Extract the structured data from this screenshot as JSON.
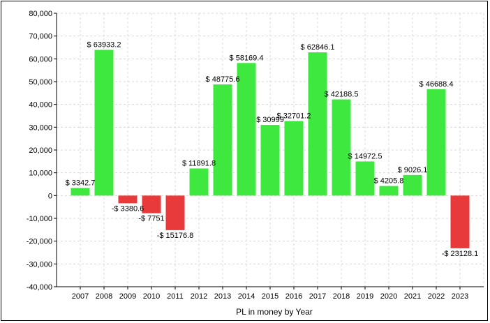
{
  "chart_data": {
    "type": "bar",
    "title": "",
    "xlabel": "PL in money by Year",
    "ylabel": "",
    "ylim": [
      -40000,
      80000
    ],
    "yticks": [
      80000,
      70000,
      60000,
      50000,
      40000,
      30000,
      20000,
      10000,
      0,
      -10000,
      -20000,
      -30000,
      -40000
    ],
    "ytick_labels": [
      "80,000",
      "70,000",
      "60,000",
      "50,000",
      "40,000",
      "30,000",
      "20,000",
      "10,000",
      "0",
      "-10,000",
      "-20,000",
      "-30,000",
      "-40,000"
    ],
    "grid": true,
    "categories": [
      "2007",
      "2008",
      "2009",
      "2010",
      "2011",
      "2012",
      "2013",
      "2014",
      "2015",
      "2016",
      "2017",
      "2018",
      "2019",
      "2020",
      "2021",
      "2022",
      "2023"
    ],
    "values": [
      3342.7,
      63933.2,
      -3380.6,
      -7751,
      -15176.8,
      11891.8,
      48775.6,
      58169.4,
      30999,
      32701.2,
      62846.1,
      42188.5,
      14972.5,
      4205.8,
      9026.1,
      46688.4,
      -23128.1
    ],
    "data_labels": [
      "$ 3342.7",
      "$ 63933.2",
      "-$ 3380.6",
      "-$ 7751",
      "-$ 15176.8",
      "$ 11891.8",
      "$ 48775.6",
      "$ 58169.4",
      "$ 30999",
      "$ 32701.2",
      "$ 62846.1",
      "$ 42188.5",
      "$ 14972.5",
      "$ 4205.8",
      "$ 9026.1",
      "$ 46688.4",
      "-$ 23128.1"
    ],
    "colors": {
      "positive": "#3ee83e",
      "negative": "#e83a3a",
      "grid": "#d8d8d8",
      "axis": "#000000"
    }
  }
}
